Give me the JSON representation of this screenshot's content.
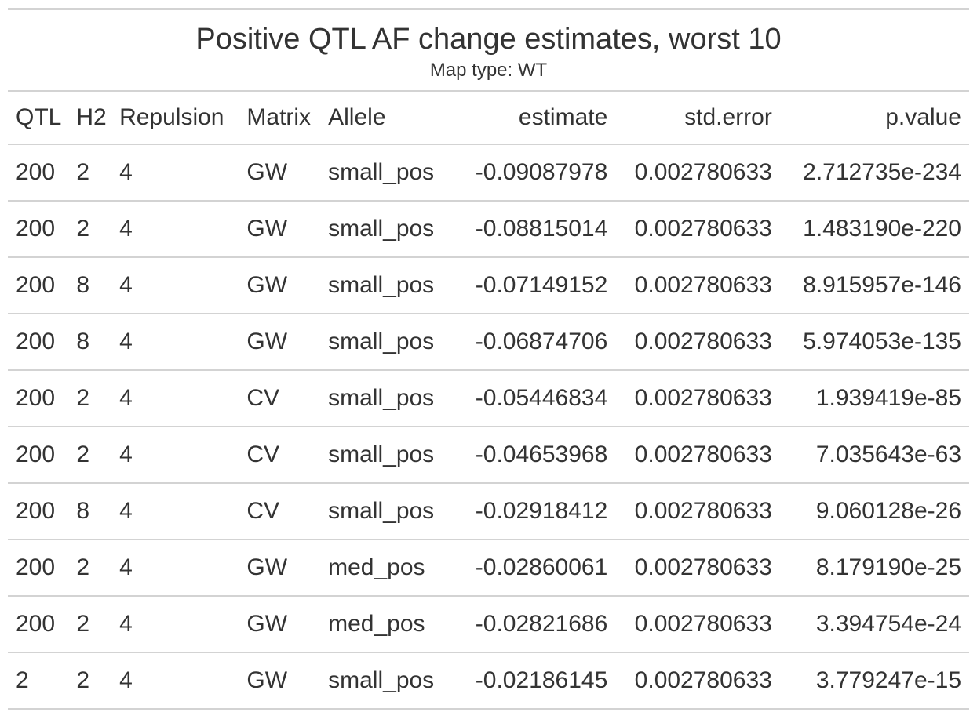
{
  "title": "Positive QTL AF change estimates, worst 10",
  "subtitle": "Map type: WT",
  "columns": [
    "QTL",
    "H2",
    "Repulsion",
    "Matrix",
    "Allele",
    "estimate",
    "std.error",
    "p.value"
  ],
  "rows": [
    [
      "200",
      "2",
      "4",
      "GW",
      "small_pos",
      "-0.09087978",
      "0.002780633",
      "2.712735e-234"
    ],
    [
      "200",
      "2",
      "4",
      "GW",
      "small_pos",
      "-0.08815014",
      "0.002780633",
      "1.483190e-220"
    ],
    [
      "200",
      "8",
      "4",
      "GW",
      "small_pos",
      "-0.07149152",
      "0.002780633",
      "8.915957e-146"
    ],
    [
      "200",
      "8",
      "4",
      "GW",
      "small_pos",
      "-0.06874706",
      "0.002780633",
      "5.974053e-135"
    ],
    [
      "200",
      "2",
      "4",
      "CV",
      "small_pos",
      "-0.05446834",
      "0.002780633",
      "1.939419e-85"
    ],
    [
      "200",
      "2",
      "4",
      "CV",
      "small_pos",
      "-0.04653968",
      "0.002780633",
      "7.035643e-63"
    ],
    [
      "200",
      "8",
      "4",
      "CV",
      "small_pos",
      "-0.02918412",
      "0.002780633",
      "9.060128e-26"
    ],
    [
      "200",
      "2",
      "4",
      "GW",
      "med_pos",
      "-0.02860061",
      "0.002780633",
      "8.179190e-25"
    ],
    [
      "200",
      "2",
      "4",
      "GW",
      "med_pos",
      "-0.02821686",
      "0.002780633",
      "3.394754e-24"
    ],
    [
      "2",
      "2",
      "4",
      "GW",
      "small_pos",
      "-0.02186145",
      "0.002780633",
      "3.779247e-15"
    ]
  ]
}
